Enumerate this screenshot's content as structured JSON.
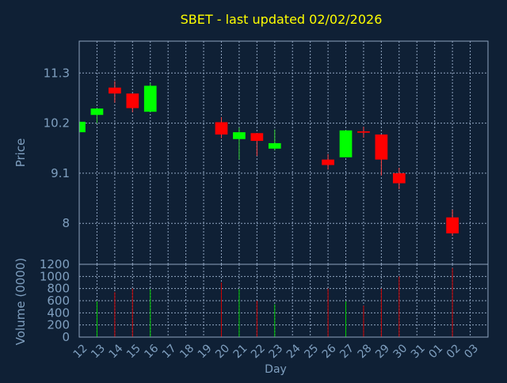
{
  "colors": {
    "background": "#0f2035",
    "title": "#ffff00",
    "axis_text": "#7f9fbf",
    "frame": "#8fa4c0",
    "grid": "#8fa4c0",
    "up": "#00ff00",
    "down": "#ff0000",
    "volume_up": "#00cc00",
    "volume_down": "#cc0000",
    "wick": "#ff4040",
    "wick_up": "#30d030"
  },
  "chart_data": {
    "type": "candlestick",
    "title": "SBET - last updated 02/02/2026",
    "xlabel": "Day",
    "price_panel": {
      "ylabel": "Price",
      "ylim": [
        7.1,
        12.0
      ],
      "yticks": [
        8,
        9.1,
        10.2,
        11.3
      ],
      "ytick_labels": [
        "8",
        "9.1",
        "10.2",
        "11.3"
      ],
      "grid": true
    },
    "volume_panel": {
      "ylabel": "Volume (0000)",
      "ylim": [
        0,
        1200
      ],
      "yticks": [
        0,
        200,
        400,
        600,
        800,
        1000,
        1200
      ],
      "ytick_labels": [
        "0",
        "200",
        "400",
        "600",
        "800",
        "1000",
        "1200"
      ],
      "grid": true
    },
    "x_ticks": [
      "12",
      "13",
      "14",
      "15",
      "16",
      "17",
      "18",
      "19",
      "20",
      "21",
      "22",
      "23",
      "24",
      "25",
      "26",
      "27",
      "28",
      "29",
      "30",
      "31",
      "01",
      "02",
      "03"
    ],
    "candles": [
      {
        "day": "12",
        "open": 10.0,
        "high": 10.23,
        "low": 9.99,
        "close": 10.23,
        "volume": 0
      },
      {
        "day": "13",
        "open": 10.38,
        "high": 10.52,
        "low": 10.2,
        "close": 10.52,
        "volume": 590
      },
      {
        "day": "14",
        "open": 10.98,
        "high": 11.12,
        "low": 10.65,
        "close": 10.85,
        "volume": 740
      },
      {
        "day": "15",
        "open": 10.85,
        "high": 10.85,
        "low": 10.44,
        "close": 10.53,
        "volume": 800
      },
      {
        "day": "16",
        "open": 10.45,
        "high": 11.08,
        "low": 10.45,
        "close": 11.02,
        "volume": 790
      },
      {
        "day": "20",
        "open": 10.22,
        "high": 10.33,
        "low": 9.87,
        "close": 9.95,
        "volume": 900
      },
      {
        "day": "21",
        "open": 9.85,
        "high": 10.1,
        "low": 9.4,
        "close": 10.0,
        "volume": 790
      },
      {
        "day": "22",
        "open": 9.98,
        "high": 9.98,
        "low": 9.48,
        "close": 9.81,
        "volume": 600
      },
      {
        "day": "23",
        "open": 9.64,
        "high": 10.06,
        "low": 9.6,
        "close": 9.76,
        "volume": 540
      },
      {
        "day": "26",
        "open": 9.4,
        "high": 9.52,
        "low": 9.18,
        "close": 9.28,
        "volume": 800
      },
      {
        "day": "27",
        "open": 9.45,
        "high": 10.05,
        "low": 9.45,
        "close": 10.04,
        "volume": 590
      },
      {
        "day": "28",
        "open": 10.02,
        "high": 10.12,
        "low": 9.88,
        "close": 9.99,
        "volume": 520
      },
      {
        "day": "29",
        "open": 9.95,
        "high": 9.95,
        "low": 9.05,
        "close": 9.4,
        "volume": 800
      },
      {
        "day": "30",
        "open": 9.1,
        "high": 9.22,
        "low": 8.75,
        "close": 8.88,
        "volume": 1000
      },
      {
        "day": "02",
        "open": 8.13,
        "high": 8.3,
        "low": 7.73,
        "close": 7.78,
        "volume": 1140
      }
    ]
  }
}
